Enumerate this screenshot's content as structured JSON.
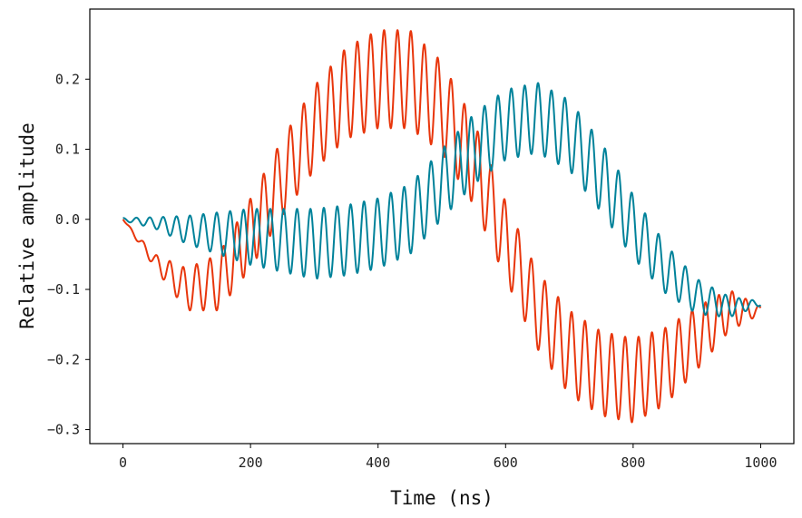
{
  "chart_data": {
    "type": "line",
    "title": "",
    "xlabel": "Time (ns)",
    "ylabel": "Relative amplitude",
    "xlim": [
      -52,
      1052
    ],
    "ylim": [
      -0.32,
      0.3
    ],
    "xticks": [
      0,
      200,
      400,
      600,
      800,
      1000
    ],
    "xtick_labels": [
      "0",
      "200",
      "400",
      "600",
      "800",
      "1000"
    ],
    "yticks": [
      0.2,
      0.1,
      0.0,
      -0.1,
      -0.2,
      -0.3
    ],
    "ytick_labels": [
      "0.2",
      "0.1",
      "0.0",
      "−0.1",
      "−0.2",
      "−0.3"
    ],
    "grid": false,
    "legend": "none",
    "oscillation_period_ns": 21,
    "series": [
      {
        "color": "#e8360c",
        "x": [
          0,
          50,
          100,
          150,
          200,
          250,
          300,
          350,
          400,
          450,
          500,
          550,
          600,
          650,
          700,
          750,
          800,
          850,
          900,
          950,
          1000
        ],
        "center": [
          0,
          -0.06,
          -0.1,
          -0.09,
          -0.02,
          0.06,
          0.13,
          0.18,
          0.2,
          0.2,
          0.16,
          0.08,
          -0.03,
          -0.13,
          -0.19,
          -0.22,
          -0.23,
          -0.21,
          -0.17,
          -0.13,
          -0.13
        ],
        "amplitude": [
          0,
          0.01,
          0.03,
          0.04,
          0.05,
          0.055,
          0.06,
          0.065,
          0.07,
          0.07,
          0.065,
          0.06,
          0.055,
          0.055,
          0.06,
          0.06,
          0.06,
          0.055,
          0.045,
          0.03,
          0.005
        ]
      },
      {
        "color": "#00829a",
        "x": [
          0,
          50,
          100,
          150,
          200,
          250,
          300,
          350,
          400,
          450,
          500,
          550,
          600,
          650,
          700,
          750,
          800,
          850,
          900,
          950,
          1000
        ],
        "center": [
          0,
          -0.005,
          -0.015,
          -0.02,
          -0.025,
          -0.03,
          -0.035,
          -0.03,
          -0.02,
          0.0,
          0.05,
          0.1,
          0.135,
          0.145,
          0.12,
          0.06,
          -0.01,
          -0.07,
          -0.11,
          -0.125,
          -0.12
        ],
        "amplitude": [
          0.002,
          0.008,
          0.02,
          0.03,
          0.04,
          0.045,
          0.05,
          0.05,
          0.05,
          0.05,
          0.05,
          0.05,
          0.05,
          0.05,
          0.05,
          0.05,
          0.045,
          0.035,
          0.025,
          0.015,
          0.003
        ]
      }
    ]
  }
}
